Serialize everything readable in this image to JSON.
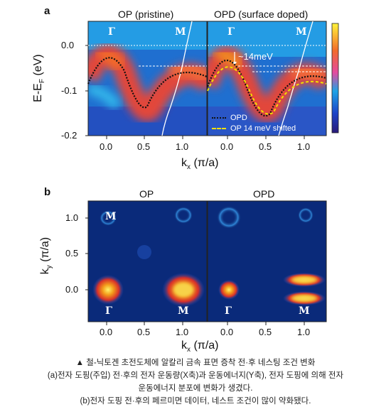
{
  "panel_a": {
    "label": "a",
    "title_left": "OP (pristine)",
    "title_right": "OPD (surface doped)",
    "ylabel": "E-E",
    "ylabel_sub": "F",
    "ylabel_unit": " (eV)",
    "xlabel": "k",
    "xlabel_sub": "x",
    "xlabel_unit": " (π/a)",
    "yticks": [
      "0.0",
      "-0.1",
      "-0.2"
    ],
    "xticks_left": [
      "0.0",
      "0.5",
      "1.0"
    ],
    "xticks_right": [
      "0.0",
      "0.5",
      "1.0"
    ],
    "sym_gamma": "Γ",
    "sym_m": "M",
    "annotation": "~14meV",
    "legend": [
      {
        "label": "OPD",
        "color": "#111111"
      },
      {
        "label": "OP 14 meV shifted",
        "color": "#f3e100"
      }
    ]
  },
  "panel_b": {
    "label": "b",
    "title_left": "OP",
    "title_right": "OPD",
    "ylabel": "k",
    "ylabel_sub": "y",
    "ylabel_unit": " (π/a)",
    "xlabel": "k",
    "xlabel_sub": "x",
    "xlabel_unit": " (π/a)",
    "yticks": [
      "1.0",
      "0.5",
      "0.0"
    ],
    "xticks_left": [
      "0.0",
      "0.5",
      "1.0"
    ],
    "xticks_right": [
      "0.0",
      "0.5",
      "1.0"
    ],
    "sym_gamma": "Γ",
    "sym_m": "M"
  },
  "caption": {
    "line1": "▲ 철-닉토겐 초전도체에 알칼리 금속 표면 증착 전·후 네스팅 조건 변화",
    "line2": "(a)전자 도핑(주입) 전·후의 전자 운동량(X축)과 운동에너지(Y축), 전자 도핑에 의해 전자",
    "line3": "운동에너지 분포에 변화가 생겼다.",
    "line4": "(b)전자 도핑 전·후의 페르미면 데이터, 네스트 조건이 많이 약화됐다."
  }
}
